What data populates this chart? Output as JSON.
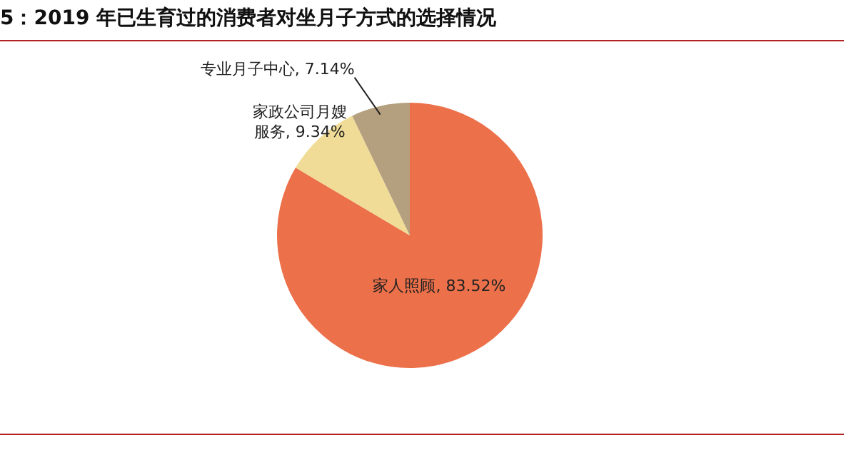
{
  "chart_data": {
    "type": "pie",
    "title": "5：2019 年已生育过的消费者对坐月子方式的选择情况",
    "categories": [
      "家人照顾",
      "家政公司月嫂服务",
      "专业月子中心"
    ],
    "values": [
      83.52,
      9.34,
      7.14
    ],
    "value_labels": [
      "83.52%",
      "9.34%",
      "7.14%"
    ],
    "colors": [
      "#ec7049",
      "#f0dc96",
      "#b49f7f"
    ],
    "legend": false
  }
}
